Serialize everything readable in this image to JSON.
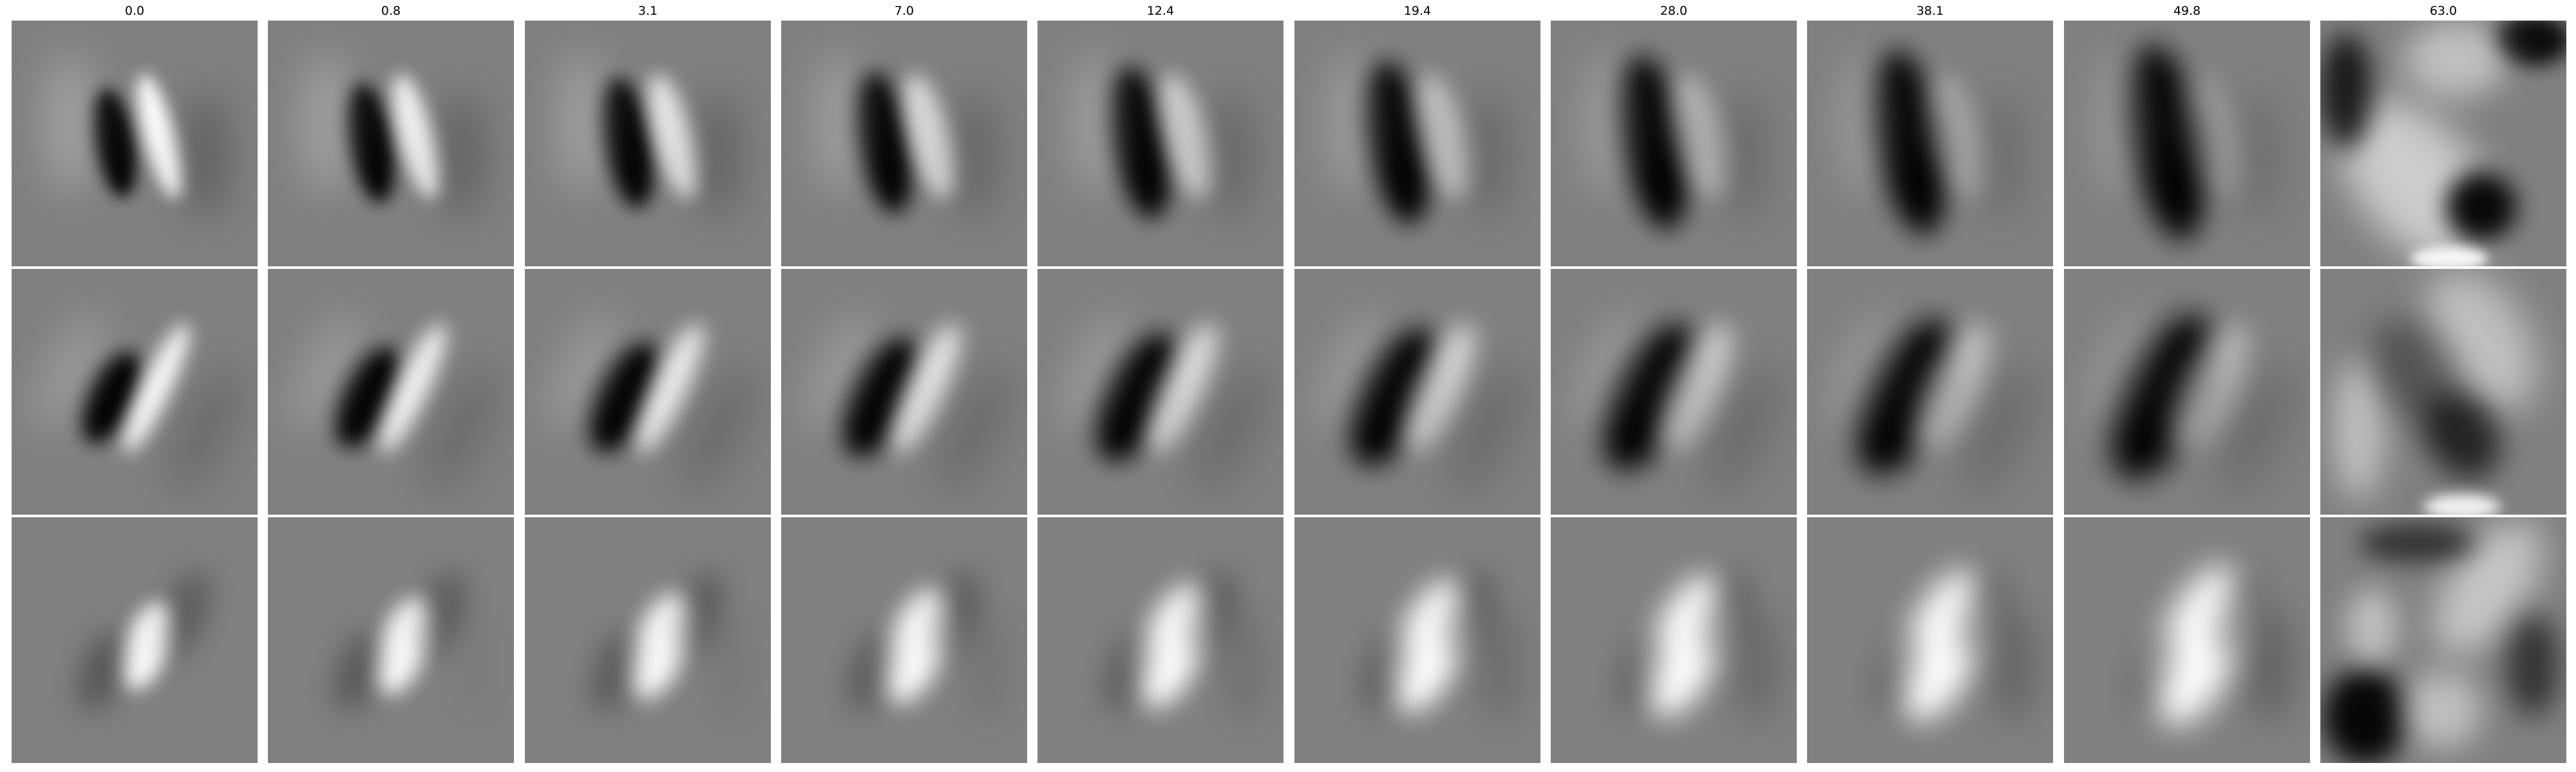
{
  "figure": {
    "column_titles": [
      "0.0",
      "0.8",
      "3.1",
      "7.0",
      "12.4",
      "19.4",
      "28.0",
      "38.1",
      "49.8",
      "63.0"
    ],
    "rows": 3,
    "background": "#808080"
  }
}
